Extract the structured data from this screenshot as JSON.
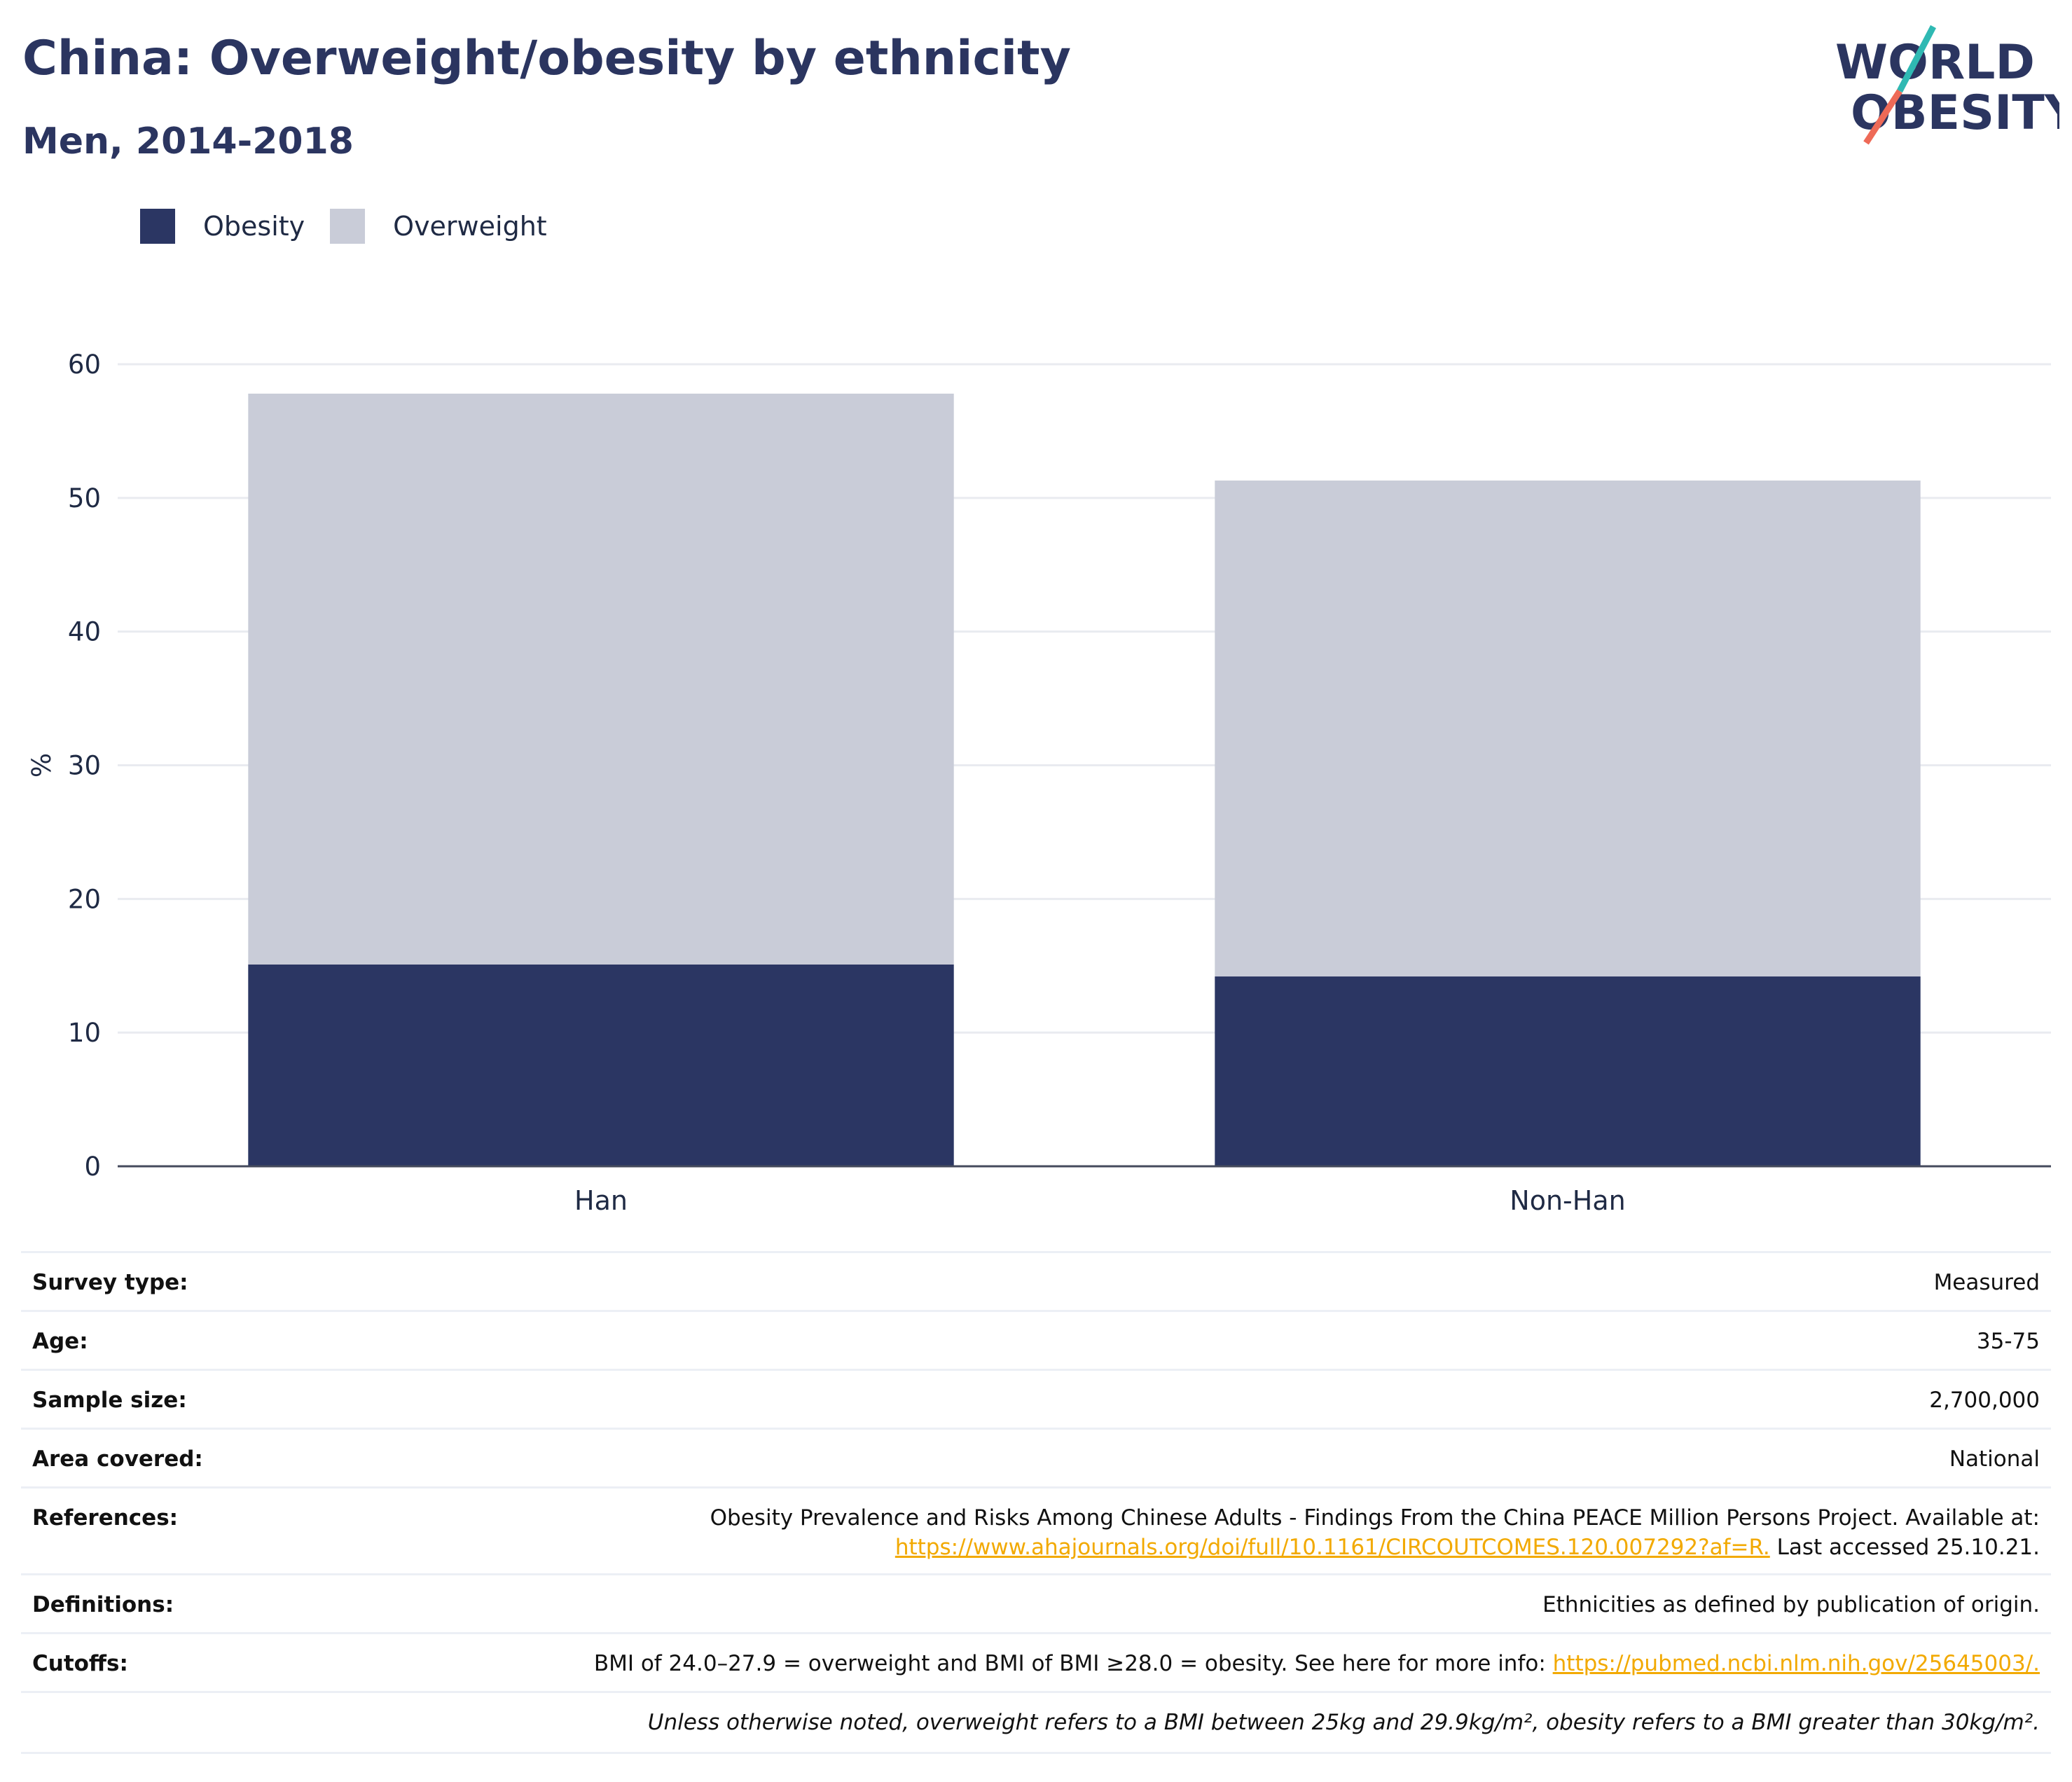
{
  "title": "China: Overweight/obesity by ethnicity",
  "subtitle": "Men, 2014-2018",
  "logo": {
    "line1": "WORLD",
    "line2": "OBESITY"
  },
  "colors": {
    "obesity": "#2b3663",
    "overweight": "#c9ccd8",
    "accent_teal": "#2fb9b3",
    "accent_coral": "#ee6a57",
    "brand_navy": "#2b3560",
    "link": "#f2a900"
  },
  "chart_data": {
    "type": "bar",
    "stacked": true,
    "categories": [
      "Han",
      "Non-Han"
    ],
    "series": [
      {
        "name": "Obesity",
        "values": [
          15.1,
          14.2
        ]
      },
      {
        "name": "Overweight",
        "values": [
          42.7,
          37.1
        ]
      }
    ],
    "ylabel": "%",
    "xlabel": "",
    "ylim": [
      0,
      60
    ],
    "yticks": [
      0,
      10,
      20,
      30,
      40,
      50,
      60
    ],
    "grid": true,
    "legend_position": "top-left"
  },
  "info": {
    "survey_type": {
      "label": "Survey type:",
      "value": "Measured"
    },
    "age": {
      "label": "Age:",
      "value": "35-75"
    },
    "sample_size": {
      "label": "Sample size:",
      "value": "2,700,000"
    },
    "area": {
      "label": "Area covered:",
      "value": "National"
    },
    "references": {
      "label": "References:",
      "text": "Obesity Prevalence and Risks Among Chinese Adults - Findings From the China PEACE Million Persons Project. Available at:",
      "link": "https://www.ahajournals.org/doi/full/10.1161/CIRCOUTCOMES.120.007292?af=R.",
      "suffix": "Last accessed 25.10.21."
    },
    "definitions": {
      "label": "Definitions:",
      "value": "Ethnicities as defined by publication of origin."
    },
    "cutoffs": {
      "label": "Cutoffs:",
      "text": "BMI of 24.0–27.9 = overweight and BMI of BMI ≥28.0 = obesity. See here for more info:",
      "link": "https://pubmed.ncbi.nlm.nih.gov/25645003/."
    },
    "note": "Unless otherwise noted, overweight refers to a BMI between 25kg and 29.9kg/m², obesity refers to a BMI greater than 30kg/m²."
  }
}
